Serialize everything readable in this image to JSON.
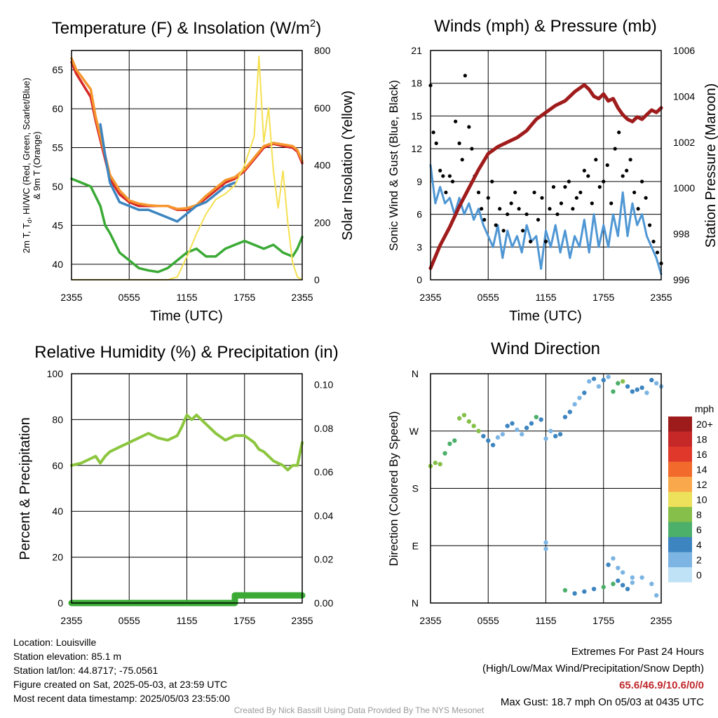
{
  "panels": {
    "temperature": {
      "title": "Temperature (F) & Insolation (W/m",
      "title_sup": "2",
      "title_end": ")",
      "ylabel_left_1": "2m T, T",
      "ylabel_left_sub": "d",
      "ylabel_left_2": ", HI/WC (Red, Green, Scarlet/Blue)",
      "ylabel_left_3": "& 9m T (Orange)",
      "ylabel_right": "Solar Insolation (Yellow)",
      "xlabel": "Time (UTC)"
    },
    "winds": {
      "title": "Winds (mph) & Pressure (mb)",
      "ylabel_left": "Sonic Wind & Gust (Blue, Black)",
      "ylabel_right": "Station Pressure (Maroon)",
      "xlabel": "Time (UTC)"
    },
    "humidity": {
      "title": "Relative Humidity (%) & Precipitation (in)",
      "ylabel_left": "Percent & Precipitation"
    },
    "direction": {
      "title": "Wind Direction",
      "ylabel_left": "Direction (Colored By Speed)",
      "legend_title": "mph",
      "legend_labels": [
        "20+",
        "18",
        "16",
        "14",
        "12",
        "10",
        "8",
        "6",
        "4",
        "2",
        "0"
      ],
      "legend_colors": [
        "#9e1b1b",
        "#c62828",
        "#e0392c",
        "#f26b2c",
        "#f9a94b",
        "#ede05a",
        "#86c04a",
        "#4caf6a",
        "#3d85c0",
        "#7cb5e3",
        "#bfe2f6"
      ]
    }
  },
  "footer": {
    "location": "Location: Louisville",
    "elevation": "Station elevation: 85.1 m",
    "latlon": "Station lat/lon: 44.8717; -75.0561",
    "created": "Figure created on Sat, 2025-05-03, at 23:59 UTC",
    "recent": "Most recent data timestamp: 2025/05/03 23:55:00",
    "extremes_title": "Extremes For Past 24 Hours",
    "extremes_sub": "(High/Low/Max Wind/Precipitation/Snow Depth)",
    "extremes_values": "65.6/46.9/10.6/0/0",
    "max_gust": "Max Gust: 18.7 mph On 05/03 at 0435 UTC",
    "credit": "Created By Nick Bassill Using Data Provided By The NYS Mesonet"
  },
  "chart_data": [
    {
      "type": "line",
      "title": "Temperature (F) & Insolation (W/m2)",
      "xlabel": "Time (UTC)",
      "ylabel": "2m T, Td, HI/WC (Red, Green, Scarlet/Blue) & 9m T (Orange)",
      "y2label": "Solar Insolation (Yellow)",
      "x_ticks": [
        "2355",
        "0555",
        "1155",
        "1755",
        "2355"
      ],
      "y_ticks": [
        40,
        45,
        50,
        55,
        60,
        65
      ],
      "y2_ticks": [
        0,
        200,
        400,
        600,
        800
      ],
      "ylim": [
        38,
        67.5
      ],
      "y2lim": [
        0,
        800
      ],
      "xlim": [
        0,
        24
      ],
      "series": [
        {
          "name": "2m T",
          "color": "#d62728",
          "axis": "left",
          "x": [
            0,
            0.5,
            1,
            2,
            2.5,
            3,
            3.5,
            4,
            5,
            6,
            7,
            8,
            9,
            10,
            11,
            12,
            13,
            14,
            15,
            16,
            17,
            18,
            19,
            20,
            21,
            22,
            23,
            23.5,
            24
          ],
          "y": [
            66,
            64.5,
            63.5,
            61.5,
            58.5,
            56,
            53.5,
            51,
            49,
            48,
            47.5,
            47.5,
            47.5,
            47.5,
            47,
            47,
            47.5,
            48.5,
            49.5,
            50.5,
            51,
            52,
            53.5,
            55,
            55.5,
            55.2,
            55,
            54.5,
            53
          ]
        },
        {
          "name": "9m T",
          "color": "#f5962e",
          "axis": "left",
          "x": [
            0,
            0.5,
            1,
            2,
            2.5,
            3,
            3.5,
            4,
            5,
            6,
            7,
            8,
            9,
            10,
            11,
            12,
            13,
            14,
            15,
            16,
            17,
            18,
            19,
            20,
            21,
            22,
            23,
            23.5,
            24
          ],
          "y": [
            66.5,
            65,
            64.2,
            62.5,
            59,
            56.5,
            54,
            51.5,
            49.5,
            48.2,
            47.8,
            47.6,
            47.5,
            47.5,
            47.1,
            47.2,
            47.6,
            48.8,
            49.8,
            50.8,
            51.2,
            52.2,
            53.7,
            55.2,
            55.6,
            55.4,
            55.2,
            54.7,
            53.3
          ]
        },
        {
          "name": "HI/WC",
          "color": "#3d85c0",
          "axis": "left",
          "x": [
            3,
            3.5,
            4,
            5,
            6,
            7,
            8,
            9,
            10,
            11,
            12,
            13,
            14,
            15,
            16,
            17
          ],
          "y": [
            58,
            54,
            50.5,
            48,
            47.5,
            47,
            47,
            46.5,
            46,
            45.5,
            46.5,
            47.5,
            48,
            49,
            50,
            50.5
          ]
        },
        {
          "name": "2m Td",
          "color": "#3aaa35",
          "axis": "left",
          "x": [
            0,
            1,
            2,
            3,
            3.5,
            4,
            5,
            6,
            7,
            8,
            9,
            10,
            11,
            12,
            13,
            14,
            15,
            16,
            17,
            18,
            19,
            20,
            21,
            22,
            23,
            23.5,
            24
          ],
          "y": [
            51,
            50.5,
            50,
            47.5,
            45,
            44,
            41.5,
            40.5,
            39.5,
            39.2,
            39,
            39.5,
            40.5,
            41.5,
            42,
            41,
            41,
            42,
            42.5,
            43,
            42.5,
            42,
            42.5,
            41.5,
            41,
            42,
            43.5
          ]
        },
        {
          "name": "Solar",
          "color": "#f5e050",
          "axis": "right",
          "x": [
            0,
            2,
            4,
            6,
            8,
            10,
            11,
            12,
            13,
            14,
            15,
            16,
            17,
            18,
            19,
            19.5,
            20,
            20.5,
            21,
            21.5,
            22,
            22.5,
            23,
            23.5,
            24
          ],
          "y": [
            0,
            0,
            0,
            0,
            0,
            0,
            10,
            80,
            160,
            230,
            280,
            300,
            330,
            400,
            500,
            780,
            480,
            600,
            380,
            250,
            380,
            200,
            60,
            10,
            0
          ]
        }
      ]
    },
    {
      "type": "line",
      "title": "Winds (mph) & Pressure (mb)",
      "xlabel": "Time (UTC)",
      "ylabel": "Sonic Wind & Gust (Blue, Black)",
      "y2label": "Station Pressure (Maroon)",
      "x_ticks": [
        "2355",
        "0555",
        "1155",
        "1755",
        "2355"
      ],
      "y_ticks": [
        0,
        3,
        6,
        9,
        12,
        15,
        18,
        21
      ],
      "y2_ticks": [
        996,
        998,
        1000,
        1002,
        1004,
        1006
      ],
      "ylim": [
        0,
        21
      ],
      "y2lim": [
        996,
        1006
      ],
      "xlim": [
        0,
        24
      ],
      "series": [
        {
          "name": "Sonic Wind",
          "color": "#4f97d4",
          "axis": "left",
          "x": [
            0,
            0.5,
            1,
            1.5,
            2,
            2.5,
            3,
            3.5,
            4,
            4.5,
            5,
            5.5,
            6,
            6.5,
            7,
            7.5,
            8,
            8.5,
            9,
            9.5,
            10,
            10.5,
            11,
            11.5,
            12,
            12.5,
            13,
            13.5,
            14,
            14.5,
            15,
            15.5,
            16,
            16.5,
            17,
            17.5,
            18,
            18.5,
            19,
            19.5,
            20,
            20.5,
            21,
            21.5,
            22,
            22.5,
            23,
            23.5,
            24
          ],
          "y": [
            10.5,
            7,
            8.5,
            7,
            7.5,
            6,
            7.5,
            6,
            7,
            5.5,
            6.5,
            5,
            4,
            3,
            5,
            2,
            4.5,
            3,
            4,
            2.5,
            5,
            3.5,
            4,
            1,
            4.5,
            3,
            5,
            2.5,
            4.5,
            2,
            4,
            3,
            5.5,
            2.5,
            6,
            3,
            5,
            3,
            6,
            4,
            8,
            4,
            7,
            5,
            6,
            4,
            3,
            2,
            0.5
          ]
        },
        {
          "name": "Gust",
          "color": "#000000",
          "axis": "left",
          "x": [
            0,
            0.3,
            0.6,
            1,
            1.3,
            1.6,
            2,
            2.3,
            2.6,
            3,
            3.3,
            3.6,
            4,
            4.3,
            4.6,
            5,
            5.3,
            5.6,
            6,
            6.4,
            6.8,
            7.2,
            7.6,
            8,
            8.4,
            8.8,
            9.2,
            9.6,
            10,
            10.4,
            10.8,
            11.2,
            11.6,
            12,
            12.4,
            12.8,
            13.2,
            13.6,
            14,
            14.4,
            14.8,
            15.2,
            15.6,
            16,
            16.4,
            16.8,
            17.2,
            17.6,
            18,
            18.4,
            18.8,
            19.2,
            19.6,
            20,
            20.4,
            20.8,
            21.2,
            21.6,
            22,
            22.4,
            22.8,
            23.2,
            23.6,
            24
          ],
          "y": [
            17.8,
            13.5,
            12.5,
            10,
            9.5,
            8,
            9.5,
            9,
            14.5,
            12.5,
            11,
            18.7,
            14,
            12,
            9.5,
            8,
            6.5,
            5.5,
            7.5,
            9,
            5,
            6.5,
            4.5,
            6,
            7,
            8,
            6.5,
            4.5,
            6,
            3.5,
            8,
            5.5,
            7.5,
            3.5,
            6.5,
            8.5,
            6,
            7,
            8.5,
            9,
            6.5,
            7.5,
            8,
            10,
            9.5,
            7,
            11,
            8.5,
            9,
            10.5,
            7,
            12,
            13.5,
            9.5,
            10,
            11,
            8,
            6.5,
            9,
            7.5,
            5,
            3.5,
            2.5,
            1.5
          ]
        },
        {
          "name": "Station Pressure",
          "color": "#a01c1c",
          "axis": "right",
          "x": [
            0,
            1,
            2,
            3,
            4,
            5,
            6,
            7,
            8,
            9,
            10,
            11,
            12,
            13,
            14,
            15,
            16,
            16.5,
            17,
            17.5,
            18,
            18.5,
            19,
            19.5,
            20,
            20.5,
            21,
            21.5,
            22,
            22.5,
            23,
            23.5,
            24
          ],
          "y": [
            996.5,
            997.5,
            998.3,
            999.2,
            1000,
            1000.8,
            1001.5,
            1001.8,
            1002,
            1002.2,
            1002.5,
            1003,
            1003.3,
            1003.6,
            1003.8,
            1004.2,
            1004.5,
            1004.3,
            1004,
            1003.9,
            1004.1,
            1003.8,
            1003.9,
            1003.5,
            1003.2,
            1003,
            1002.9,
            1003.1,
            1003,
            1003.2,
            1003.4,
            1003.3,
            1003.5
          ]
        }
      ]
    },
    {
      "type": "line",
      "title": "Relative Humidity (%) & Precipitation (in)",
      "ylabel": "Percent & Precipitation",
      "x_ticks": [
        "2355",
        "0555",
        "1155",
        "1755",
        "2355"
      ],
      "y_ticks": [
        0,
        20,
        40,
        60,
        80,
        100
      ],
      "y2_ticks": [
        "0.00",
        "0.02",
        "0.04",
        "0.06",
        "0.08",
        "0.10"
      ],
      "ylim": [
        0,
        100
      ],
      "y2lim": [
        0,
        0.105
      ],
      "xlim": [
        0,
        24
      ],
      "series": [
        {
          "name": "Relative Humidity",
          "color": "#8cc63f",
          "axis": "left",
          "x": [
            0,
            1,
            2,
            2.5,
            3,
            3.5,
            4,
            5,
            6,
            7,
            8,
            9,
            10,
            11,
            11.5,
            12,
            12.5,
            13,
            14,
            15,
            16,
            16.5,
            17,
            18,
            19,
            19.5,
            20,
            21,
            22,
            22.5,
            23,
            23.5,
            24
          ],
          "y": [
            60,
            61,
            63,
            64,
            61,
            64,
            66,
            68,
            70,
            72,
            74,
            72,
            71,
            73,
            77,
            82,
            80,
            82,
            78,
            74,
            71,
            72,
            73,
            73,
            70,
            67,
            66,
            62,
            60,
            58,
            60,
            60,
            70
          ]
        },
        {
          "name": "Precipitation",
          "color": "#3aaa35",
          "axis": "right",
          "x": [
            0,
            17,
            17,
            24
          ],
          "y": [
            0,
            0,
            0.0035,
            0.0035
          ]
        }
      ]
    },
    {
      "type": "scatter",
      "title": "Wind Direction",
      "ylabel": "Direction (Colored By Speed)",
      "x_ticks": [
        "2355",
        "0555",
        "1155",
        "1755",
        "2355"
      ],
      "y_ticks": [
        "N",
        "E",
        "S",
        "W",
        "N"
      ],
      "ylim": [
        0,
        360
      ],
      "xlim": [
        0,
        24
      ],
      "series": [
        {
          "name": "Wind Direction",
          "x": [
            0,
            0.5,
            1,
            1.5,
            2,
            2.5,
            3,
            3.5,
            4,
            4.5,
            5,
            5.5,
            6,
            6.5,
            7,
            7.5,
            8,
            8.5,
            9,
            9.5,
            10,
            10.5,
            11,
            11.5,
            12,
            12.5,
            13,
            13.5,
            14,
            14.5,
            15,
            15.5,
            16,
            16.5,
            17,
            17.5,
            18,
            18.5,
            19,
            19.5,
            20,
            20.5,
            21,
            21.5,
            22,
            22.5,
            23,
            23.5,
            24,
            14,
            15,
            16,
            17,
            18,
            19,
            19.5,
            20,
            20.5,
            21,
            22,
            23,
            23.5,
            12,
            12,
            18.5,
            19,
            19.5,
            20,
            21
          ],
          "y": [
            215,
            220,
            218,
            235,
            250,
            255,
            290,
            295,
            285,
            278,
            270,
            262,
            255,
            248,
            260,
            265,
            278,
            282,
            272,
            265,
            275,
            282,
            292,
            288,
            258,
            270,
            262,
            265,
            292,
            300,
            312,
            322,
            330,
            348,
            352,
            340,
            350,
            355,
            332,
            345,
            348,
            340,
            332,
            335,
            338,
            330,
            350,
            345,
            340,
            20,
            15,
            18,
            22,
            25,
            30,
            35,
            28,
            22,
            32,
            40,
            30,
            12,
            85,
            95,
            60,
            70,
            55,
            48,
            40
          ],
          "speeds": [
            8,
            8,
            7,
            6,
            5,
            5,
            8,
            7,
            8,
            7,
            7,
            4,
            3,
            3,
            2,
            2,
            3,
            3,
            2,
            2,
            3,
            4,
            5,
            4,
            2,
            2,
            3,
            3,
            4,
            3,
            2,
            2,
            3,
            2,
            4,
            2,
            3,
            2,
            6,
            5,
            8,
            4,
            3,
            4,
            3,
            2,
            3,
            2,
            2,
            5,
            4,
            3,
            4,
            5,
            6,
            4,
            3,
            3,
            2,
            2,
            2,
            2,
            2,
            2,
            3,
            2,
            2,
            2,
            2
          ]
        }
      ]
    }
  ]
}
